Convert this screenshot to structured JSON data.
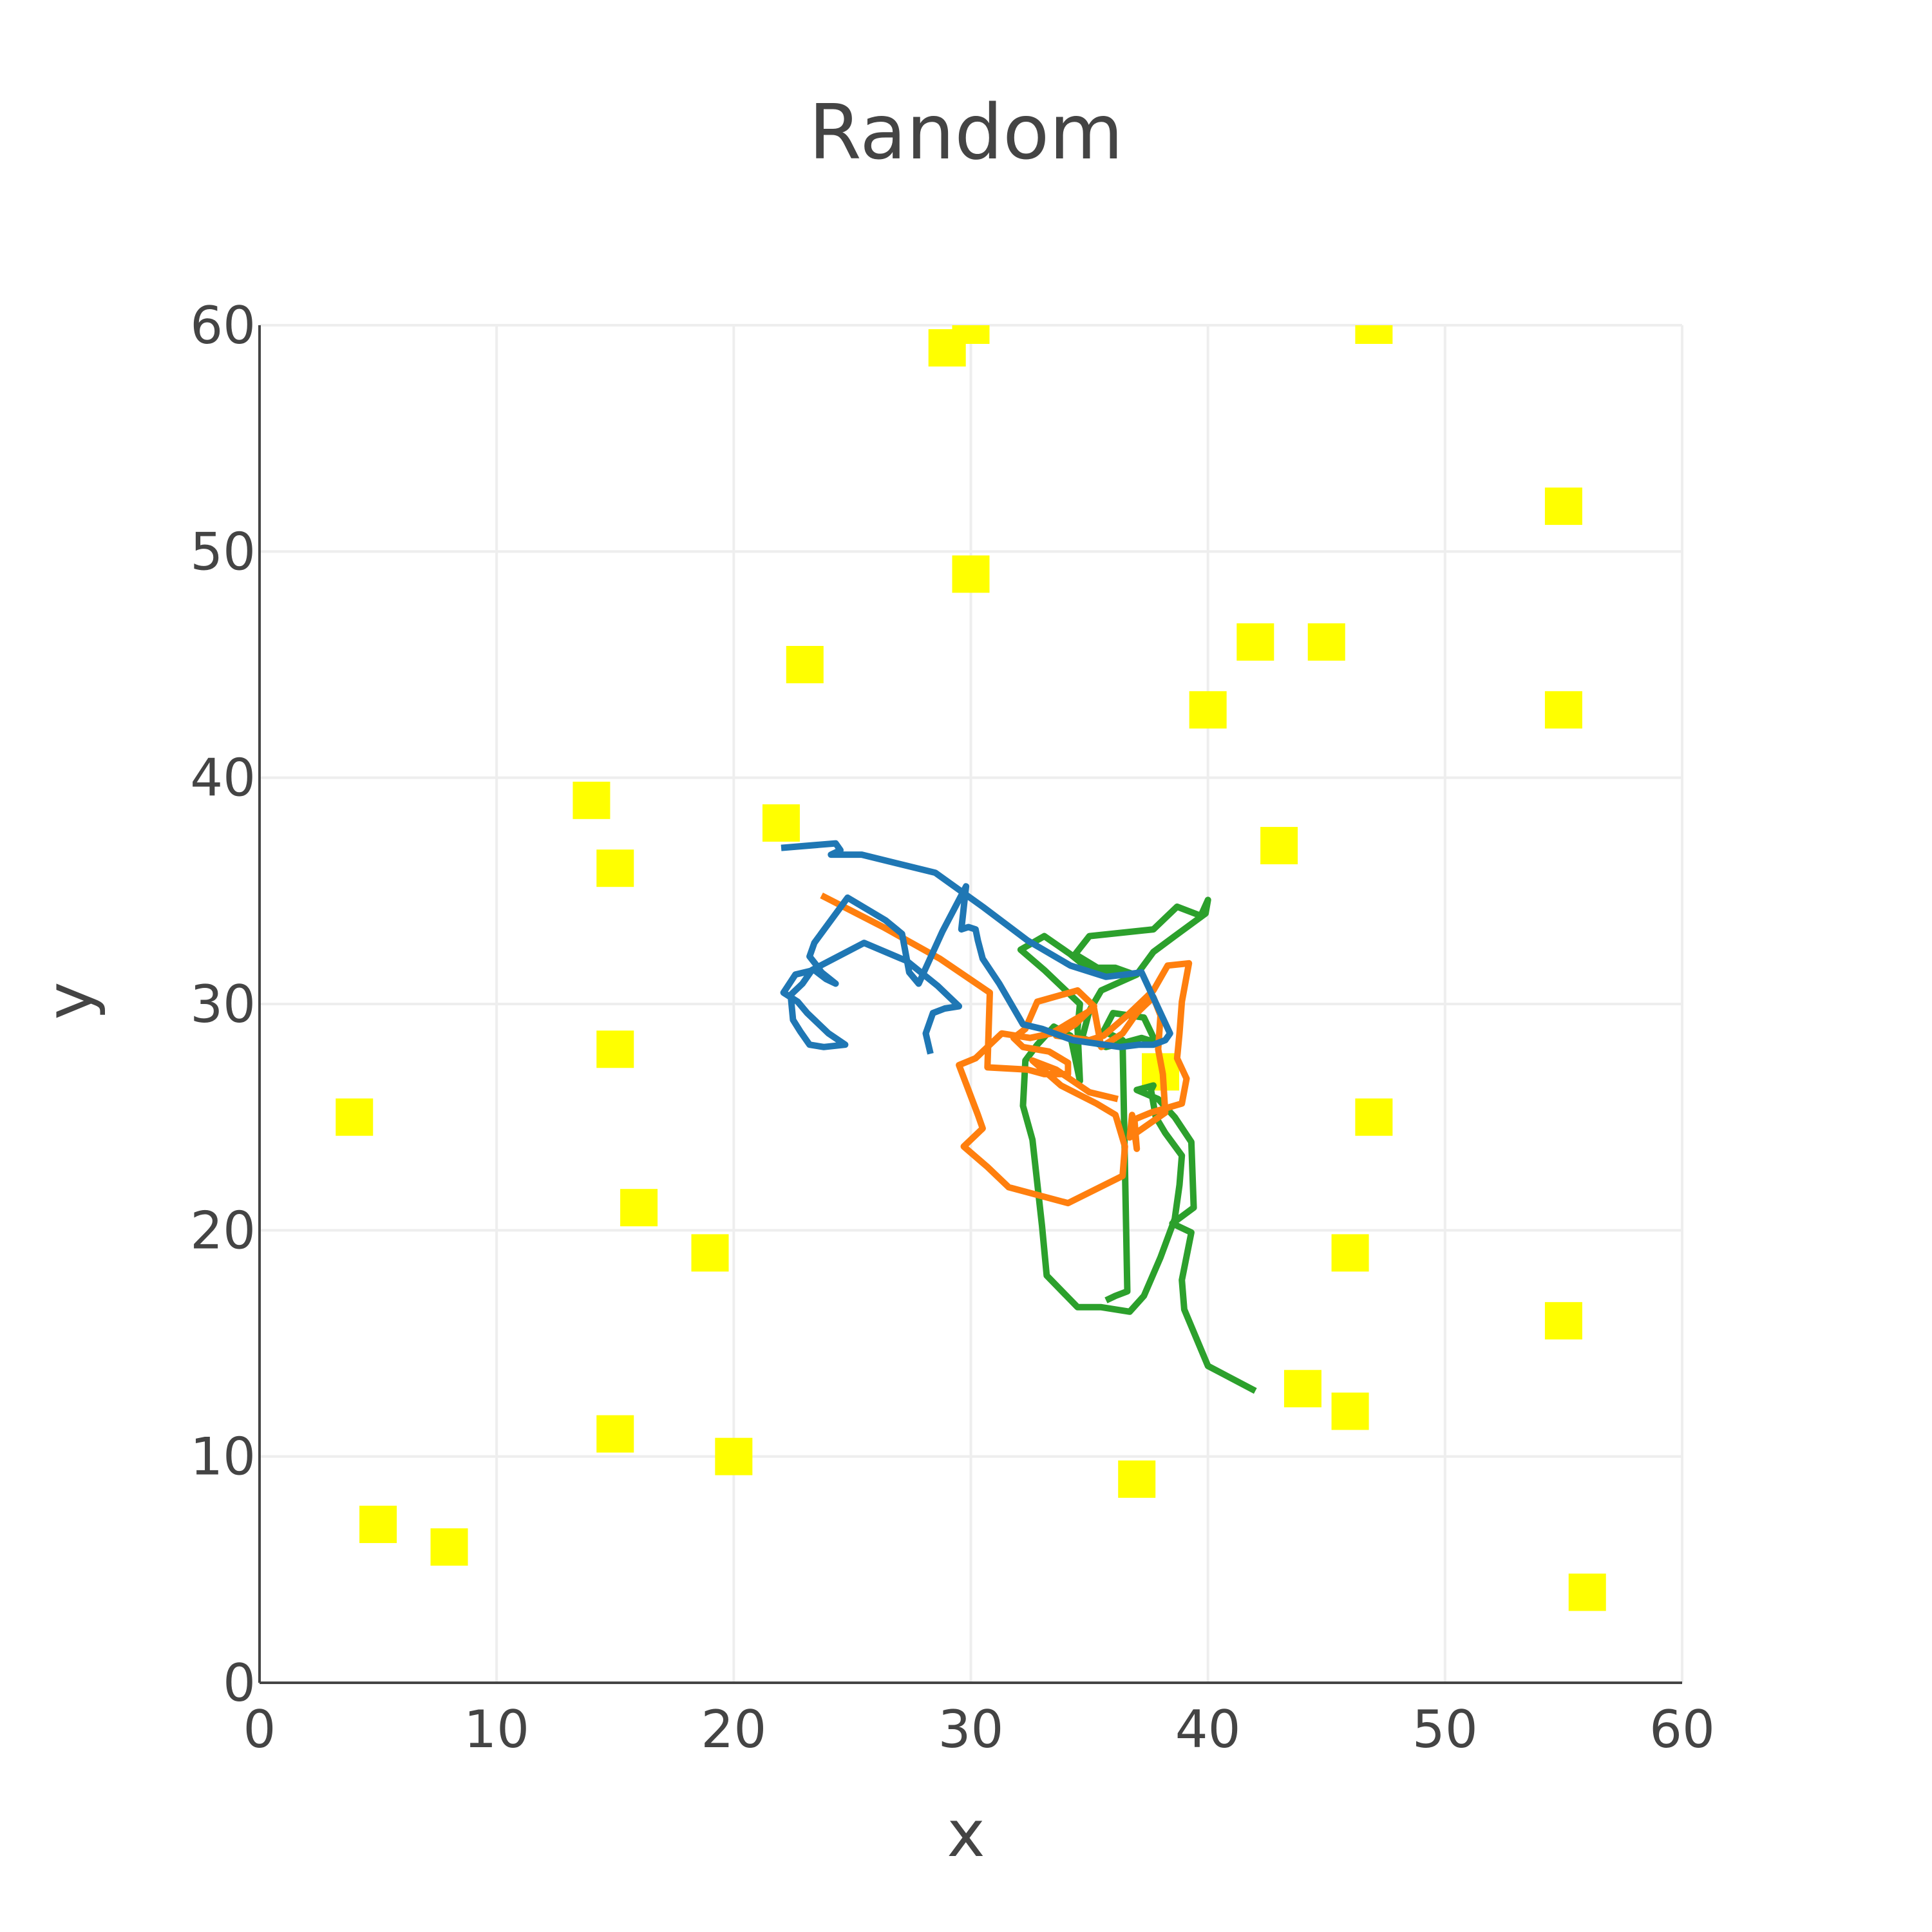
{
  "chart_data": {
    "type": "scatter",
    "title": "Random",
    "xlabel": "x",
    "ylabel": "y",
    "xlim": [
      0,
      60
    ],
    "ylim": [
      0,
      60
    ],
    "xticks": [
      0,
      10,
      20,
      30,
      40,
      50,
      60
    ],
    "yticks": [
      0,
      10,
      20,
      30,
      40,
      50,
      60
    ],
    "grid": true,
    "legend": "none",
    "markers": {
      "color": "#ffff00",
      "symbol": "square",
      "points": [
        [
          29,
          59
        ],
        [
          30,
          60
        ],
        [
          47,
          60
        ],
        [
          55,
          52
        ],
        [
          30,
          49
        ],
        [
          23,
          45
        ],
        [
          42,
          46
        ],
        [
          45,
          46
        ],
        [
          40,
          43
        ],
        [
          55,
          43
        ],
        [
          14,
          39
        ],
        [
          22,
          38
        ],
        [
          15,
          36
        ],
        [
          43,
          37
        ],
        [
          15,
          28
        ],
        [
          4,
          25
        ],
        [
          47,
          25
        ],
        [
          38,
          27
        ],
        [
          16,
          21
        ],
        [
          19,
          19
        ],
        [
          46,
          19
        ],
        [
          55,
          16
        ],
        [
          44,
          13
        ],
        [
          46,
          12
        ],
        [
          15,
          11
        ],
        [
          20,
          10
        ],
        [
          37,
          9
        ],
        [
          5,
          7
        ],
        [
          8,
          6
        ],
        [
          56,
          4
        ]
      ]
    },
    "series": [
      {
        "color": "#2ca02c",
        "points": [
          [
            42,
            12.9
          ],
          [
            40,
            14
          ],
          [
            39,
            16.5
          ],
          [
            38.9,
            17.8
          ],
          [
            39.3,
            19.9
          ],
          [
            38.5,
            20.3
          ],
          [
            39.4,
            21
          ],
          [
            39.3,
            23.9
          ],
          [
            38.6,
            25
          ],
          [
            37.9,
            25.8
          ],
          [
            37,
            26.2
          ],
          [
            37.7,
            26.4
          ],
          [
            37.6,
            26.2
          ],
          [
            37.8,
            25
          ],
          [
            38.2,
            24.3
          ],
          [
            38.9,
            23.3
          ],
          [
            38.8,
            22
          ],
          [
            38.6,
            20.5
          ],
          [
            38,
            18.8
          ],
          [
            37.3,
            17.1
          ],
          [
            36.7,
            16.4
          ],
          [
            35.5,
            16.6
          ],
          [
            34.5,
            16.6
          ],
          [
            33.2,
            18
          ],
          [
            33,
            20.2
          ],
          [
            32.6,
            24
          ],
          [
            32.2,
            25.5
          ],
          [
            32.3,
            27.5
          ],
          [
            32.8,
            28.2
          ],
          [
            33.5,
            29
          ],
          [
            34.2,
            28.6
          ],
          [
            34.6,
            26.6
          ],
          [
            34.5,
            28.9
          ],
          [
            34.6,
            30
          ],
          [
            33.9,
            30.7
          ],
          [
            33.1,
            31.5
          ],
          [
            32.1,
            32.4
          ],
          [
            33.1,
            33
          ],
          [
            34.2,
            32.2
          ],
          [
            34.9,
            31.6
          ],
          [
            36.1,
            31.6
          ],
          [
            36.9,
            31.3
          ],
          [
            35.5,
            31.5
          ],
          [
            34.4,
            32.2
          ],
          [
            35,
            33
          ],
          [
            37.7,
            33.3
          ],
          [
            38.7,
            34.3
          ],
          [
            39.7,
            33.9
          ],
          [
            40,
            34.6
          ],
          [
            39.9,
            34
          ],
          [
            38.6,
            33
          ],
          [
            37.7,
            32.3
          ],
          [
            37,
            31.3
          ],
          [
            35.5,
            30.6
          ],
          [
            35,
            29.7
          ],
          [
            34.7,
            28.5
          ],
          [
            35.7,
            28.1
          ],
          [
            36.5,
            28.3
          ],
          [
            37.2,
            28.5
          ],
          [
            37.8,
            28.3
          ],
          [
            37.3,
            29.4
          ],
          [
            36,
            29.6
          ],
          [
            35.6,
            28.8
          ],
          [
            36.4,
            28.4
          ],
          [
            36.6,
            17.3
          ],
          [
            36.1,
            17.1
          ],
          [
            35.7,
            16.9
          ]
        ]
      },
      {
        "color": "#ff7f0e",
        "points": [
          [
            23.7,
            34.8
          ],
          [
            26.3,
            33.4
          ],
          [
            28.7,
            32
          ],
          [
            30.8,
            30.5
          ],
          [
            30.7,
            27.2
          ],
          [
            32.4,
            27.1
          ],
          [
            33.1,
            26.9
          ],
          [
            34.1,
            26.9
          ],
          [
            34.1,
            27.4
          ],
          [
            33.3,
            27.9
          ],
          [
            32.2,
            28.1
          ],
          [
            31.8,
            28.5
          ],
          [
            32.3,
            28.9
          ],
          [
            32.8,
            30.1
          ],
          [
            34.5,
            30.6
          ],
          [
            35.2,
            29.9
          ],
          [
            34.4,
            29.1
          ],
          [
            33.6,
            28.6
          ],
          [
            35,
            28.4
          ],
          [
            35.6,
            28.6
          ],
          [
            36.6,
            29.5
          ],
          [
            37.7,
            30.6
          ],
          [
            38.3,
            31.7
          ],
          [
            39.2,
            31.8
          ],
          [
            38.9,
            30.1
          ],
          [
            38.8,
            28.7
          ],
          [
            38.7,
            27.6
          ],
          [
            39.1,
            26.7
          ],
          [
            38.9,
            25.6
          ],
          [
            37.6,
            25.2
          ],
          [
            36.9,
            24.9
          ],
          [
            37,
            23.6
          ],
          [
            36.8,
            25.1
          ],
          [
            36.7,
            24.1
          ],
          [
            38.2,
            25.2
          ],
          [
            38.1,
            26.9
          ],
          [
            37.9,
            28
          ],
          [
            38,
            29.5
          ],
          [
            37.7,
            30.3
          ],
          [
            37,
            29.6
          ],
          [
            36.4,
            28.7
          ],
          [
            35.5,
            28.1
          ],
          [
            35.2,
            29.8
          ],
          [
            34.2,
            29.2
          ],
          [
            33.4,
            28.7
          ],
          [
            32.5,
            28.5
          ],
          [
            31.3,
            28.7
          ],
          [
            30.2,
            27.6
          ],
          [
            29.5,
            27.3
          ],
          [
            30.3,
            25.1
          ],
          [
            30.5,
            24.5
          ],
          [
            29.7,
            23.7
          ],
          [
            30.7,
            22.8
          ],
          [
            31.6,
            21.9
          ],
          [
            34.1,
            21.2
          ],
          [
            36.4,
            22.4
          ],
          [
            36.5,
            23.7
          ],
          [
            36.1,
            25.1
          ],
          [
            35.3,
            25.6
          ],
          [
            33.8,
            26.4
          ],
          [
            32.6,
            27.5
          ],
          [
            33.6,
            27.1
          ],
          [
            35,
            26.1
          ],
          [
            36.2,
            25.8
          ]
        ]
      },
      {
        "color": "#1f77b4",
        "points": [
          [
            22,
            36.9
          ],
          [
            24.3,
            37.1
          ],
          [
            24.5,
            36.8
          ],
          [
            24.1,
            36.6
          ],
          [
            25.4,
            36.6
          ],
          [
            28.5,
            35.8
          ],
          [
            30.5,
            34.3
          ],
          [
            32.4,
            32.8
          ],
          [
            34.2,
            31.7
          ],
          [
            35.7,
            31.2
          ],
          [
            36.5,
            31.3
          ],
          [
            37.2,
            31.4
          ],
          [
            38.4,
            28.7
          ],
          [
            38.2,
            28.4
          ],
          [
            37.7,
            28.2
          ],
          [
            37.1,
            28.2
          ],
          [
            36.3,
            28.1
          ],
          [
            34.3,
            28.4
          ],
          [
            33,
            28.9
          ],
          [
            32.2,
            29.1
          ],
          [
            31.2,
            30.9
          ],
          [
            30.5,
            32
          ],
          [
            30.3,
            32.8
          ],
          [
            30.2,
            33.3
          ],
          [
            29.9,
            33.4
          ],
          [
            29.6,
            33.3
          ],
          [
            29.8,
            35.2
          ],
          [
            28.8,
            33.2
          ],
          [
            27.8,
            30.9
          ],
          [
            27.4,
            31.4
          ],
          [
            27.1,
            33.1
          ],
          [
            26.4,
            33.7
          ],
          [
            24.8,
            34.7
          ],
          [
            23.4,
            32.7
          ],
          [
            23.2,
            32.1
          ],
          [
            23.5,
            31.7
          ],
          [
            23.7,
            31.4
          ],
          [
            24.3,
            30.9
          ],
          [
            23.9,
            31.1
          ],
          [
            23.4,
            31.5
          ],
          [
            22.6,
            31.3
          ],
          [
            22.1,
            30.5
          ],
          [
            22.7,
            30.1
          ],
          [
            23.1,
            29.6
          ],
          [
            24,
            28.7
          ],
          [
            24.7,
            28.2
          ],
          [
            23.8,
            28.1
          ],
          [
            23.2,
            28.2
          ],
          [
            22.8,
            28.8
          ],
          [
            22.5,
            29.3
          ],
          [
            22.4,
            30.4
          ],
          [
            22.9,
            30.9
          ],
          [
            23.3,
            31.5
          ],
          [
            25.5,
            32.7
          ],
          [
            27.3,
            31.9
          ],
          [
            28.6,
            30.8
          ],
          [
            29.1,
            30.3
          ],
          [
            29.5,
            29.9
          ],
          [
            28.9,
            29.8
          ],
          [
            28.4,
            29.6
          ],
          [
            28.1,
            28.7
          ],
          [
            28.3,
            27.8
          ]
        ]
      }
    ]
  }
}
